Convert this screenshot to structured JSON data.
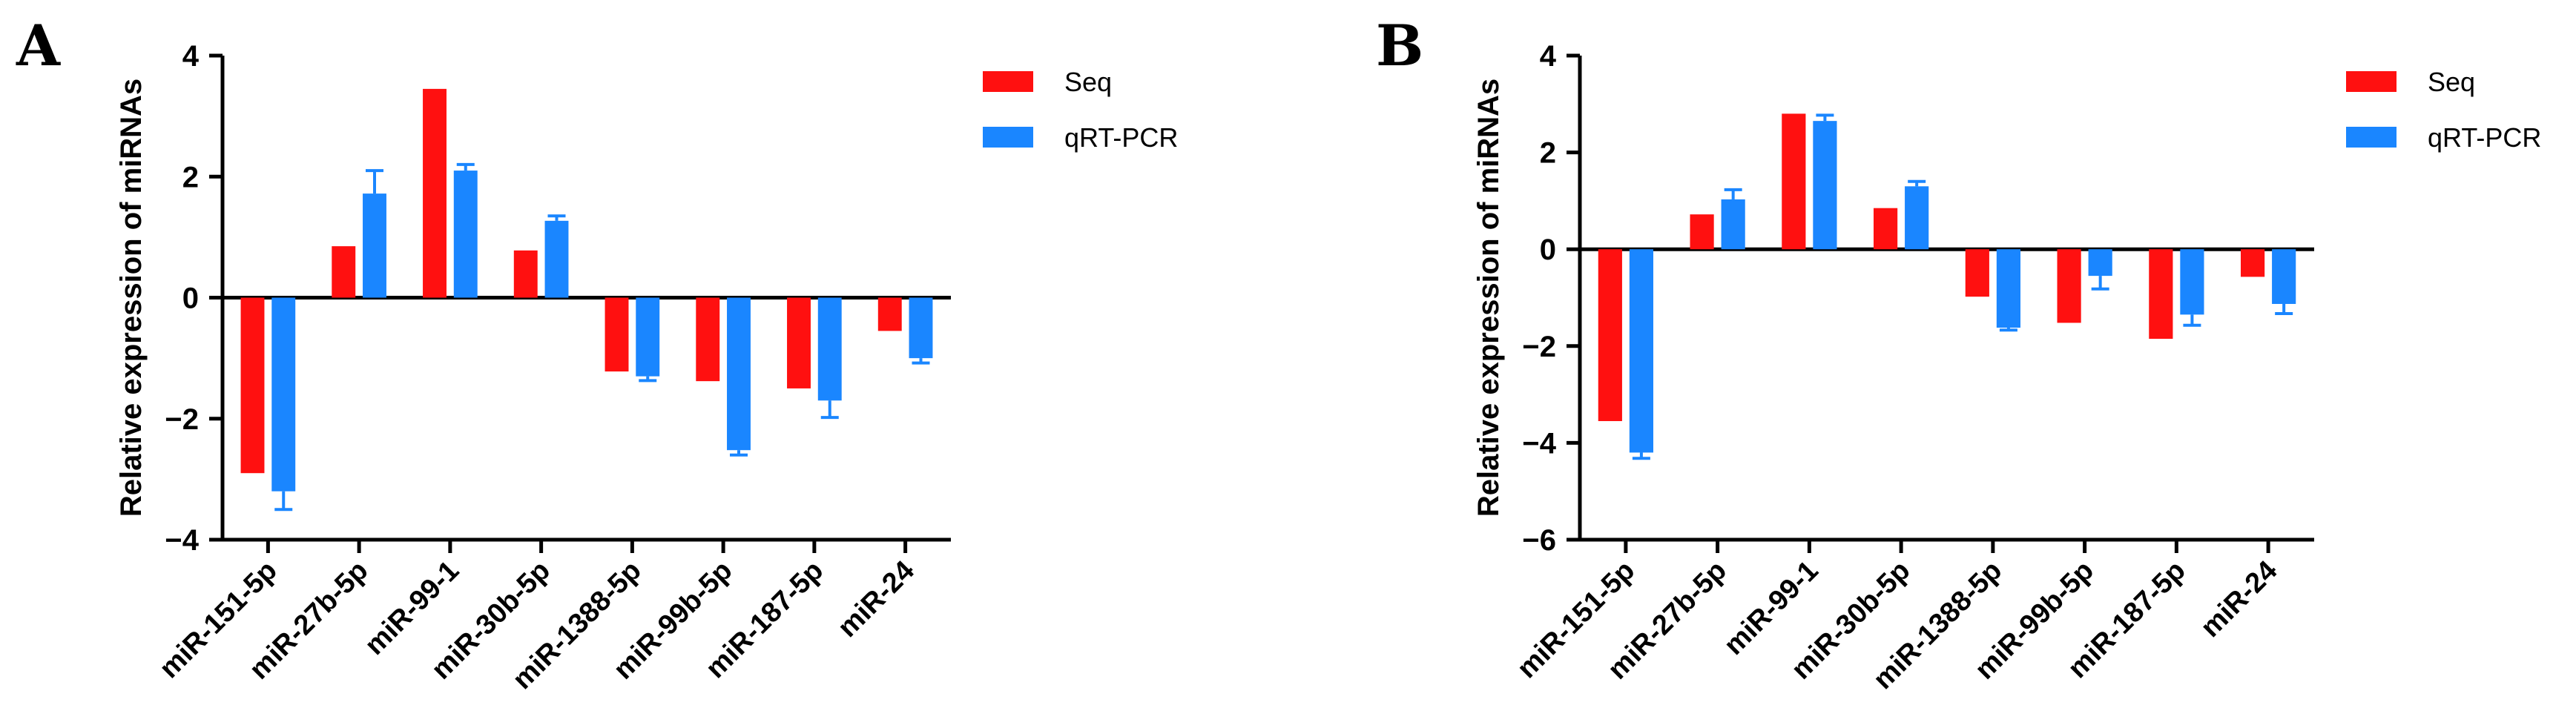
{
  "colors": {
    "seq": "#ff1010",
    "qrt": "#1a86ff",
    "axis": "#000000"
  },
  "chart_data": [
    {
      "panel": "A",
      "type": "bar",
      "ylabel": "Relative expression of miRNAs",
      "ylim": [
        -4,
        4
      ],
      "yticks": [
        4,
        2,
        0,
        -2,
        -4
      ],
      "ytick_labels": [
        "4",
        "2",
        "0",
        "−2",
        "−4"
      ],
      "categories": [
        "miR-151-5p",
        "miR-27b-5p",
        "miR-99-1",
        "miR-30b-5p",
        "miR-1388-5p",
        "miR-99b-5p",
        "miR-187-5p",
        "miR-24"
      ],
      "series": [
        {
          "name": "Seq",
          "values": [
            -2.9,
            0.85,
            3.45,
            0.78,
            -1.22,
            -1.38,
            -1.5,
            -0.55
          ]
        },
        {
          "name": "qRT-PCR",
          "values": [
            -3.2,
            1.72,
            2.1,
            1.27,
            -1.3,
            -2.52,
            -1.7,
            -1.0
          ],
          "errors": [
            0.3,
            0.38,
            0.1,
            0.08,
            0.07,
            0.08,
            0.28,
            0.08
          ]
        }
      ],
      "legend": [
        "Seq",
        "qRT-PCR"
      ],
      "legend_position": "top-right"
    },
    {
      "panel": "B",
      "type": "bar",
      "ylabel": "Relative expression of miRNAs",
      "ylim": [
        -6,
        4
      ],
      "yticks": [
        4,
        2,
        0,
        -2,
        -4,
        -6
      ],
      "ytick_labels": [
        "4",
        "2",
        "0",
        "−2",
        "−4",
        "−6"
      ],
      "categories": [
        "miR-151-5p",
        "miR-27b-5p",
        "miR-99-1",
        "miR-30b-5p",
        "miR-1388-5p",
        "miR-99b-5p",
        "miR-187-5p",
        "miR-24"
      ],
      "series": [
        {
          "name": "Seq",
          "values": [
            -3.55,
            0.72,
            2.8,
            0.85,
            -0.98,
            -1.52,
            -1.85,
            -0.57
          ]
        },
        {
          "name": "qRT-PCR",
          "values": [
            -4.2,
            1.03,
            2.65,
            1.3,
            -1.62,
            -0.55,
            -1.35,
            -1.13
          ],
          "errors": [
            0.12,
            0.2,
            0.12,
            0.1,
            0.05,
            0.27,
            0.22,
            0.2
          ]
        }
      ],
      "legend": [
        "Seq",
        "qRT-PCR"
      ],
      "legend_position": "top-right"
    }
  ]
}
